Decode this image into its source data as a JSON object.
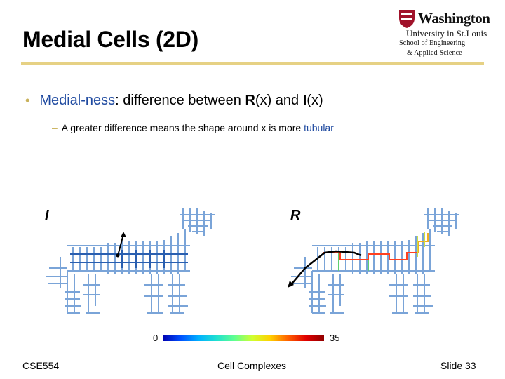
{
  "slide": {
    "title": "Medial Cells (2D)",
    "bullet1": {
      "prefix": "Medial-ness",
      "middle": ": difference between ",
      "r": "R",
      "rx": "(x) and ",
      "i": "I",
      "ix": "(x)"
    },
    "bullet2": {
      "text": "A greater difference means the shape around x is more ",
      "highlight": "tubular"
    },
    "label_left": "I",
    "label_right": "R",
    "colorbar": {
      "min": "0",
      "max": "35"
    },
    "footer": {
      "left": "CSE554",
      "center": "Cell Complexes",
      "right": "Slide 33"
    }
  },
  "logo": {
    "line1": "Washington",
    "line2": "University in St.Louis",
    "line3": "School of Engineering",
    "line4": "& Applied Science"
  },
  "colors": {
    "bullet": "#c8b15a",
    "accent": "#1f4aa0",
    "rule": "#e6d184"
  }
}
